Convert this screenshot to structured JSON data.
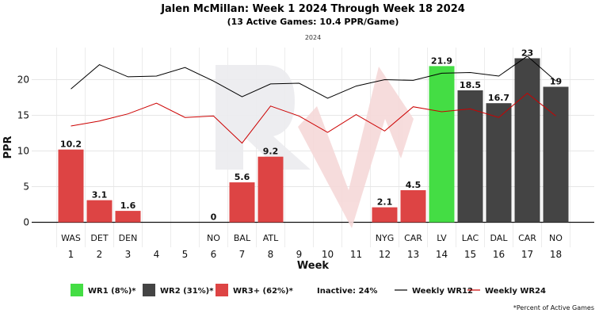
{
  "chart_data": {
    "type": "bar",
    "title": "Jalen McMillan: Week 1 2024 Through Week 18 2024",
    "subtitle": "(13 Active Games: 10.4 PPR/Game)",
    "year_tag": "2024",
    "xlabel": "Week",
    "ylabel": "PPR",
    "ylim": [
      -3.5,
      24.5
    ],
    "yticks": [
      0,
      5,
      10,
      15,
      20
    ],
    "categories": [
      "1",
      "2",
      "3",
      "4",
      "5",
      "6",
      "7",
      "8",
      "9",
      "10",
      "11",
      "12",
      "13",
      "14",
      "15",
      "16",
      "17",
      "18"
    ],
    "opponents": [
      "WAS",
      "DET",
      "DEN",
      "",
      "",
      "NO",
      "BAL",
      "ATL",
      "",
      "",
      "",
      "NYG",
      "CAR",
      "LV",
      "LAC",
      "DAL",
      "CAR",
      "NO"
    ],
    "values": [
      10.2,
      3.1,
      1.6,
      null,
      null,
      0,
      5.6,
      9.2,
      null,
      null,
      null,
      2.1,
      4.5,
      21.9,
      18.5,
      16.7,
      23,
      19
    ],
    "labels": [
      "10.2",
      "3.1",
      "1.6",
      "",
      "",
      "0",
      "5.6",
      "9.2",
      "",
      "",
      "",
      "2.1",
      "4.5",
      "21.9",
      "18.5",
      "16.7",
      "23",
      "19"
    ],
    "tiers": [
      "wr3",
      "wr3",
      "wr3",
      "",
      "",
      "wr3",
      "wr3",
      "wr3",
      "",
      "",
      "",
      "wr3",
      "wr3",
      "wr1",
      "wr2",
      "wr2",
      "wr2",
      "wr2"
    ],
    "series": [
      {
        "name": "Weekly WR12",
        "color": "#000000",
        "values": [
          18.7,
          22.1,
          20.4,
          20.5,
          21.7,
          19.8,
          17.6,
          19.4,
          19.5,
          17.4,
          19.1,
          20.0,
          19.9,
          20.9,
          21.0,
          20.5,
          23.3,
          19.8
        ]
      },
      {
        "name": "Weekly WR24",
        "color": "#cc0000",
        "values": [
          13.5,
          14.2,
          15.2,
          16.7,
          14.7,
          14.9,
          11.1,
          16.3,
          14.9,
          12.6,
          15.1,
          12.8,
          16.2,
          15.5,
          15.9,
          14.7,
          18.1,
          14.9
        ]
      }
    ],
    "legend": [
      {
        "key": "wr1",
        "label": "WR1 (8%)*",
        "color": "#44dd44"
      },
      {
        "key": "wr2",
        "label": "WR2 (31%)*",
        "color": "#444444"
      },
      {
        "key": "wr3",
        "label": "WR3+ (62%)*",
        "color": "#dd4444"
      },
      {
        "key": "inactive",
        "label": "Inactive: 24%"
      },
      {
        "key": "wr12",
        "label": "Weekly WR12",
        "color": "#000000"
      },
      {
        "key": "wr24",
        "label": "Weekly WR24",
        "color": "#cc0000"
      }
    ],
    "footnote": "*Percent of Active Games",
    "grid": true
  }
}
